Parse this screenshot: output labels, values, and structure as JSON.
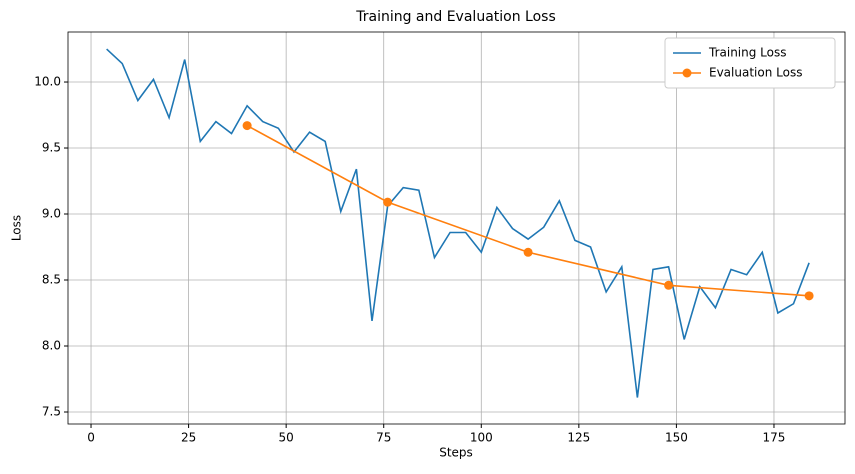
{
  "chart_data": {
    "type": "line",
    "title": "Training and Evaluation Loss",
    "x_label": "Steps",
    "y_label": "Loss",
    "series": [
      {
        "name": "Training Loss",
        "color": "#1f77b4",
        "markers": false,
        "x": [
          4,
          8,
          12,
          16,
          20,
          24,
          28,
          32,
          36,
          40,
          44,
          48,
          52,
          56,
          60,
          64,
          68,
          72,
          76,
          80,
          84,
          88,
          92,
          96,
          100,
          104,
          108,
          112,
          116,
          120,
          124,
          128,
          132,
          136,
          140,
          144,
          148,
          152,
          156,
          160,
          164,
          168,
          172,
          176,
          180,
          184
        ],
        "values": [
          10.25,
          10.14,
          9.86,
          10.02,
          9.73,
          10.17,
          9.55,
          9.7,
          9.61,
          9.82,
          9.7,
          9.65,
          9.47,
          9.62,
          9.55,
          9.02,
          9.34,
          8.19,
          9.06,
          9.2,
          9.18,
          8.67,
          8.86,
          8.86,
          8.71,
          9.05,
          8.89,
          8.81,
          8.9,
          9.1,
          8.8,
          8.75,
          8.41,
          8.6,
          7.61,
          8.58,
          8.6,
          8.05,
          8.45,
          8.29,
          8.58,
          8.54,
          8.71,
          8.25,
          8.32,
          8.63
        ]
      },
      {
        "name": "Evaluation Loss",
        "color": "#ff7f0e",
        "markers": true,
        "x": [
          40,
          76,
          112,
          148,
          184
        ],
        "values": [
          9.67,
          9.09,
          8.71,
          8.46,
          8.38
        ]
      }
    ],
    "xlim": [
      -5.9,
      193.2
    ],
    "xticks": [
      0,
      25,
      50,
      75,
      100,
      125,
      150,
      175
    ],
    "ylim": [
      7.409,
      10.379
    ],
    "yticks": [
      7.5,
      {
        "value": 8.0,
        "label": "8.0"
      },
      8.5,
      {
        "value": 9.0,
        "label": "9.0"
      },
      9.5,
      {
        "value": 10.0,
        "label": "10.0"
      }
    ],
    "grid": true,
    "legend": "upper-right"
  }
}
